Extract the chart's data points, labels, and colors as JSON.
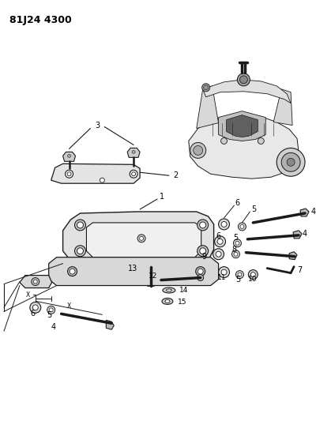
{
  "title": "81J24 4300",
  "bg_color": "#ffffff",
  "line_color": "#1a1a1a",
  "fig_width": 4.0,
  "fig_height": 5.33,
  "dpi": 100
}
